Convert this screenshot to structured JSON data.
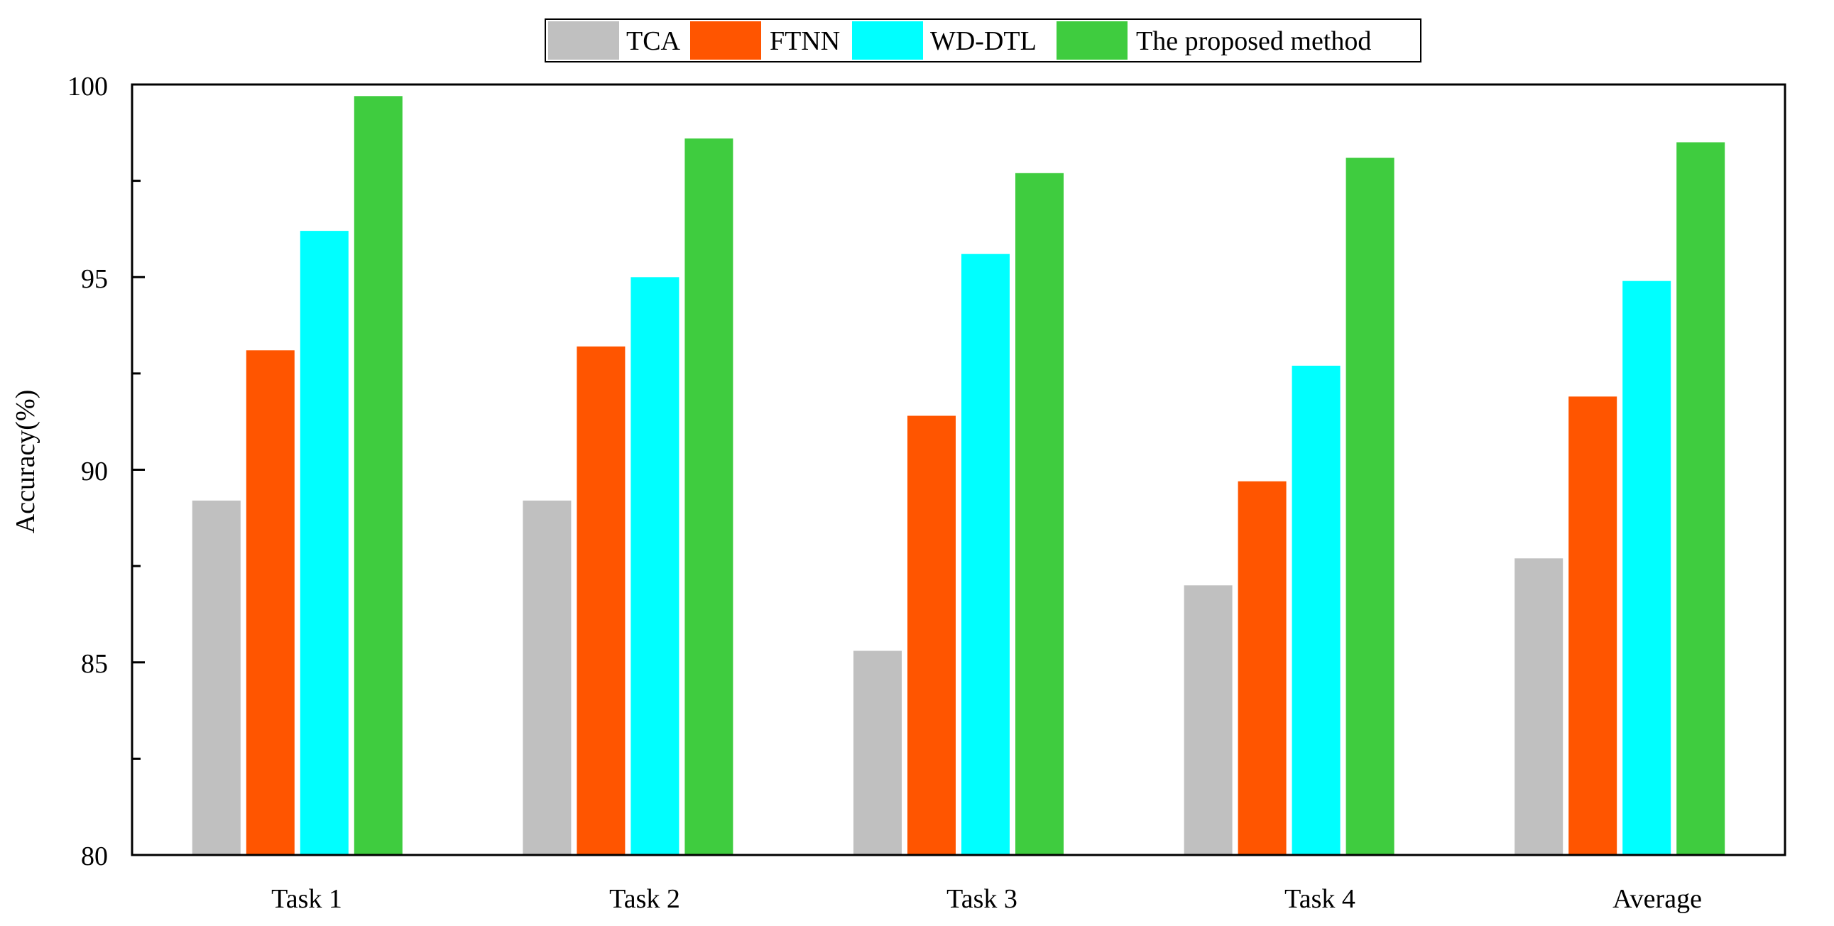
{
  "chart_data": {
    "type": "bar",
    "title": "",
    "xlabel": "",
    "ylabel": "Accuracy(%)",
    "ylim": [
      80,
      100
    ],
    "yticks": [
      "80",
      "85",
      "90",
      "95",
      "100"
    ],
    "categories": [
      "Task 1",
      "Task 2",
      "Task 3",
      "Task 4",
      "Average"
    ],
    "legend_position": "top-center",
    "grid": false,
    "series": [
      {
        "name": "TCA",
        "color": "#c0c0c0",
        "values": [
          89.2,
          89.2,
          85.3,
          87.0,
          87.7
        ]
      },
      {
        "name": "FTNN",
        "color": "#ff5500",
        "values": [
          93.1,
          93.2,
          91.4,
          89.7,
          91.9
        ]
      },
      {
        "name": "WD-DTL",
        "color": "#00ffff",
        "values": [
          96.2,
          95.0,
          95.6,
          92.7,
          94.9
        ]
      },
      {
        "name": "The proposed method",
        "color": "#3fcc3f",
        "values": [
          99.7,
          98.6,
          97.7,
          98.1,
          98.5
        ]
      }
    ]
  }
}
